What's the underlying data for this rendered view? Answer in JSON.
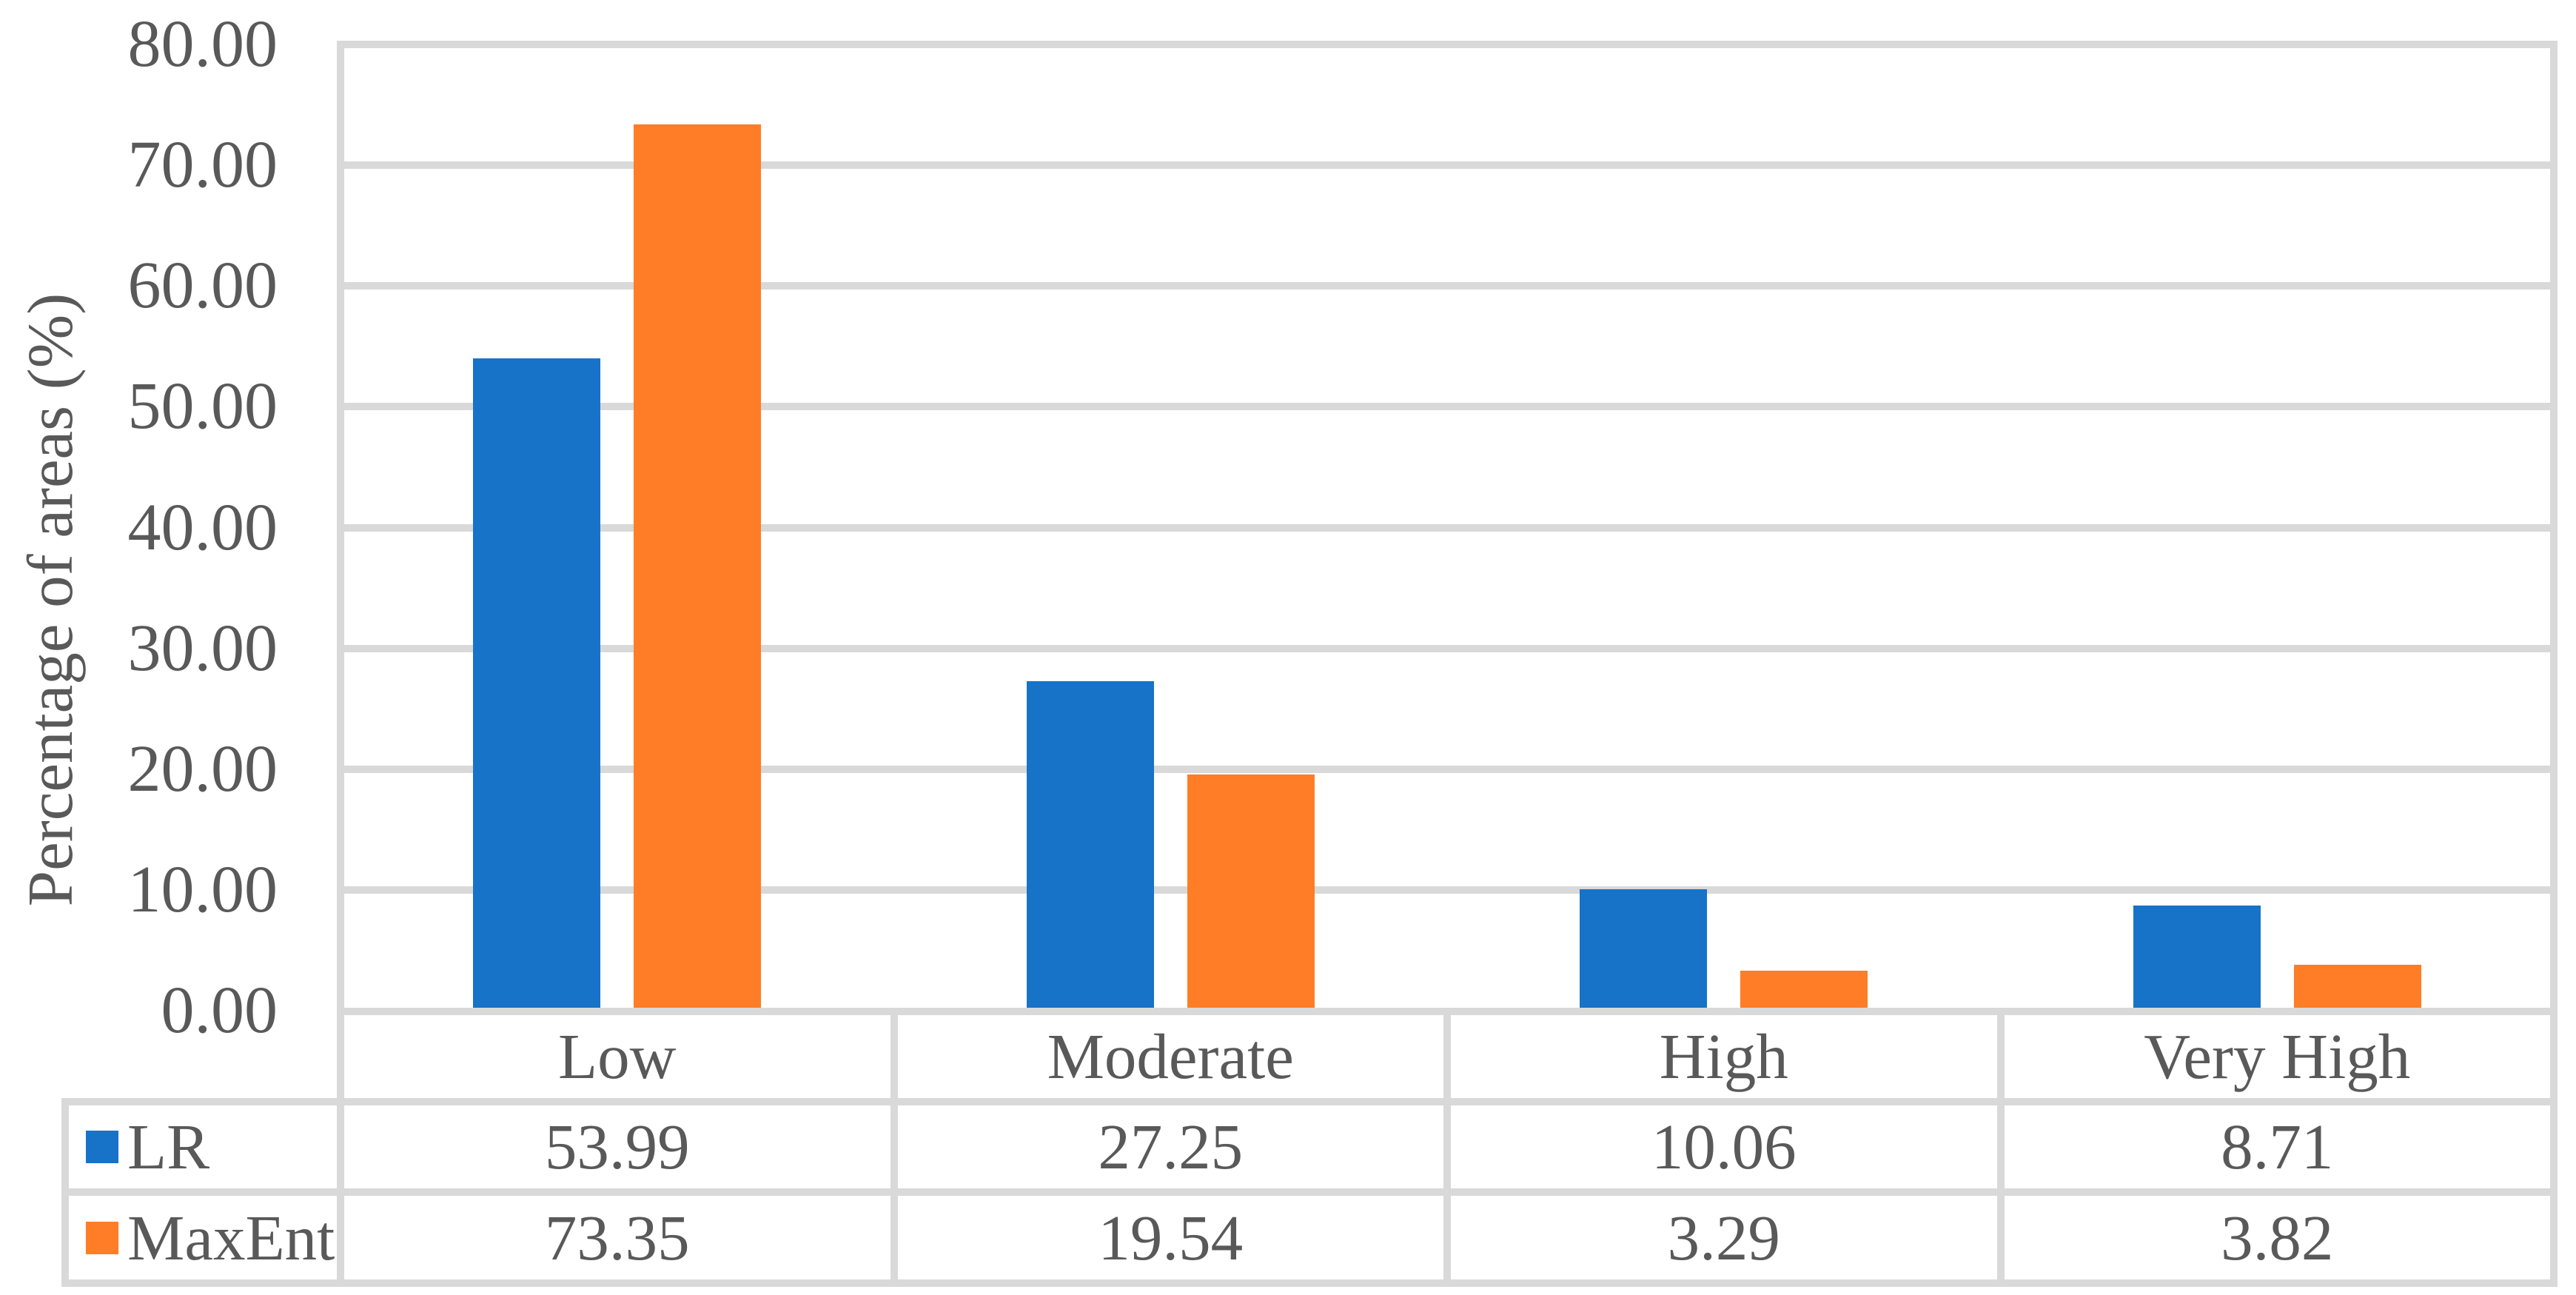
{
  "chart_data": {
    "type": "bar",
    "title": "",
    "xlabel": "",
    "ylabel": "Percentage of areas (%)",
    "categories": [
      "Low",
      "Moderate",
      "High",
      "Very High"
    ],
    "series": [
      {
        "name": "LR",
        "color": "#1673C8",
        "values": [
          53.99,
          27.25,
          10.06,
          8.71
        ]
      },
      {
        "name": "MaxEnt",
        "color": "#FF7D26",
        "values": [
          73.35,
          19.54,
          3.29,
          3.82
        ]
      }
    ],
    "ylim": [
      0,
      80
    ],
    "ytick_step": 10,
    "ytick_labels": [
      "80.00",
      "70.00",
      "60.00",
      "50.00",
      "40.00",
      "30.00",
      "20.00",
      "10.00",
      "0.00"
    ],
    "grid": true,
    "data_table_shown": true,
    "legend_position": "data-table-left-keys",
    "value_decimals": 2
  },
  "colors": {
    "grid_and_borders": "#D9D9D9",
    "text": "#595959",
    "series_lr": "#1673C8",
    "series_maxent": "#FF7D26",
    "background": "#FFFFFF"
  }
}
